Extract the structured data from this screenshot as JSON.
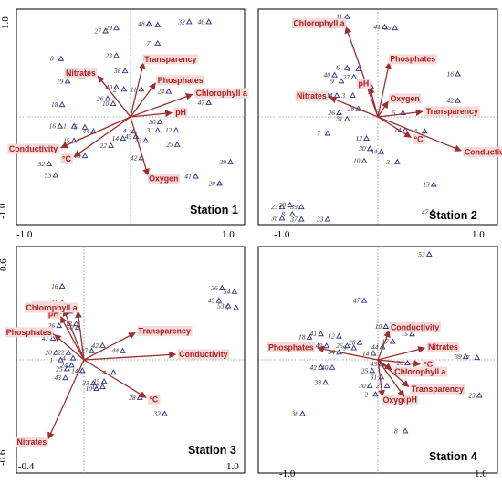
{
  "colors": {
    "vector": "#9c2f2f",
    "vector_label": "#b01e1e",
    "site": "#2b2f8c",
    "site_label": "#333333"
  },
  "icons": {
    "site_marker": "triangle-outline",
    "vector_head": "arrowhead"
  },
  "chart_data": [
    {
      "type": "scatter",
      "title": "Station 1",
      "xlim": [
        -1.0,
        1.0
      ],
      "ylim": [
        -1.0,
        1.0
      ],
      "xticks": [
        "-1.0",
        "1.0"
      ],
      "yticks": [
        "1.0",
        "-1.0"
      ],
      "vectors": [
        {
          "name": "Nitrates",
          "x": -0.3,
          "y": 0.4
        },
        {
          "name": "Transparency",
          "x": 0.12,
          "y": 0.53
        },
        {
          "name": "Phosphates",
          "x": 0.23,
          "y": 0.33
        },
        {
          "name": "Chlorophyll a",
          "x": 0.57,
          "y": 0.22
        },
        {
          "name": "pH",
          "x": 0.38,
          "y": 0.04
        },
        {
          "name": "Conductivity",
          "x": -0.64,
          "y": -0.3
        },
        {
          "name": "°C",
          "x": -0.52,
          "y": -0.39
        },
        {
          "name": "Oxygen",
          "x": 0.16,
          "y": -0.57
        }
      ],
      "sites": [
        {
          "label": "29",
          "x": -0.13,
          "y": 0.87
        },
        {
          "label": "27",
          "x": -0.23,
          "y": 0.84
        },
        {
          "label": "48",
          "x": 0.17,
          "y": 0.91
        },
        {
          "label": "6",
          "x": 0.25,
          "y": 0.9
        },
        {
          "label": "32",
          "x": 0.54,
          "y": 0.93
        },
        {
          "label": "46",
          "x": 0.72,
          "y": 0.93
        },
        {
          "label": "7",
          "x": 0.25,
          "y": 0.72
        },
        {
          "label": "8",
          "x": -0.64,
          "y": 0.57
        },
        {
          "label": "23",
          "x": -0.13,
          "y": 0.6
        },
        {
          "label": "21",
          "x": -0.45,
          "y": 0.4
        },
        {
          "label": "19",
          "x": -0.58,
          "y": 0.35
        },
        {
          "label": "38",
          "x": -0.05,
          "y": 0.45
        },
        {
          "label": "40",
          "x": -0.13,
          "y": 0.29
        },
        {
          "label": "2",
          "x": -0.06,
          "y": 0.27
        },
        {
          "label": "11",
          "x": 0.1,
          "y": 0.27
        },
        {
          "label": "24",
          "x": 0.35,
          "y": 0.25
        },
        {
          "label": "26",
          "x": -0.21,
          "y": 0.18
        },
        {
          "label": "10",
          "x": -0.16,
          "y": 0.13
        },
        {
          "label": "18",
          "x": -0.63,
          "y": 0.12
        },
        {
          "label": "16",
          "x": -0.65,
          "y": -0.09
        },
        {
          "label": "1",
          "x": -0.52,
          "y": -0.09
        },
        {
          "label": "5",
          "x": -0.42,
          "y": -0.1
        },
        {
          "label": "44",
          "x": -0.34,
          "y": -0.14
        },
        {
          "label": "30",
          "x": 0.27,
          "y": -0.05
        },
        {
          "label": "31",
          "x": 0.25,
          "y": -0.13
        },
        {
          "label": "12",
          "x": 0.42,
          "y": -0.13
        },
        {
          "label": "14",
          "x": -0.07,
          "y": -0.21
        },
        {
          "label": "15",
          "x": -0.52,
          "y": -0.23
        },
        {
          "label": "4",
          "x": 0.03,
          "y": -0.14
        },
        {
          "label": "45",
          "x": 0.05,
          "y": -0.19
        },
        {
          "label": "43",
          "x": 0.14,
          "y": -0.23
        },
        {
          "label": "25",
          "x": 0.43,
          "y": -0.27
        },
        {
          "label": "22",
          "x": -0.18,
          "y": -0.28
        },
        {
          "label": "13",
          "x": -0.42,
          "y": -0.38
        },
        {
          "label": "42",
          "x": 0.1,
          "y": -0.4
        },
        {
          "label": "52",
          "x": -0.75,
          "y": -0.46
        },
        {
          "label": "53",
          "x": -0.69,
          "y": -0.57
        },
        {
          "label": "41",
          "x": 0.6,
          "y": -0.58
        },
        {
          "label": "20",
          "x": 0.82,
          "y": -0.65
        },
        {
          "label": "39",
          "x": 0.92,
          "y": -0.44
        },
        {
          "label": "47",
          "x": 0.72,
          "y": 0.14
        }
      ]
    },
    {
      "type": "scatter",
      "title": "Station 2",
      "xlim": [
        -1.0,
        1.0
      ],
      "ylim": [
        -1.0,
        1.0
      ],
      "xticks": [
        "-1.0",
        "1.0"
      ],
      "yticks": [],
      "vectors": [
        {
          "name": "Chlorophyll a",
          "x": -0.28,
          "y": 0.88
        },
        {
          "name": "Phosphates",
          "x": 0.1,
          "y": 0.53
        },
        {
          "name": "Nitrates",
          "x": -0.42,
          "y": 0.19
        },
        {
          "name": "pH",
          "x": -0.07,
          "y": 0.29
        },
        {
          "name": "Oxygen",
          "x": 0.09,
          "y": 0.15
        },
        {
          "name": "Transparency",
          "x": 0.39,
          "y": 0.05
        },
        {
          "name": "°C",
          "x": 0.29,
          "y": -0.2
        },
        {
          "name": "Conductivity",
          "x": 0.73,
          "y": -0.33
        }
      ],
      "sites": [
        {
          "label": "11",
          "x": -0.27,
          "y": 0.98
        },
        {
          "label": "41",
          "x": 0.06,
          "y": 0.88
        },
        {
          "label": "35",
          "x": 0.15,
          "y": 0.87
        },
        {
          "label": "16",
          "x": 0.7,
          "y": 0.42
        },
        {
          "label": "42",
          "x": 0.7,
          "y": 0.16
        },
        {
          "label": "40",
          "x": -0.38,
          "y": 0.41
        },
        {
          "label": "6",
          "x": -0.27,
          "y": 0.48
        },
        {
          "label": "2",
          "x": -0.17,
          "y": 0.47
        },
        {
          "label": "9",
          "x": -0.32,
          "y": 0.35
        },
        {
          "label": "27",
          "x": -0.21,
          "y": 0.39
        },
        {
          "label": "34",
          "x": -0.36,
          "y": 0.21
        },
        {
          "label": "15",
          "x": -0.06,
          "y": 0.3
        },
        {
          "label": "1",
          "x": -0.43,
          "y": 0.21
        },
        {
          "label": "26",
          "x": -0.34,
          "y": 0.04
        },
        {
          "label": "3",
          "x": -0.22,
          "y": 0.21
        },
        {
          "label": "28",
          "x": -0.17,
          "y": 0.08
        },
        {
          "label": "31",
          "x": -0.27,
          "y": -0.02
        },
        {
          "label": "5",
          "x": 0.22,
          "y": 0.04
        },
        {
          "label": "14",
          "x": 0.24,
          "y": -0.13
        },
        {
          "label": "4",
          "x": 0.41,
          "y": -0.14
        },
        {
          "label": "7",
          "x": -0.44,
          "y": -0.16
        },
        {
          "label": "12",
          "x": -0.1,
          "y": -0.21
        },
        {
          "label": "30",
          "x": -0.07,
          "y": -0.31
        },
        {
          "label": "44",
          "x": 0.03,
          "y": -0.34
        },
        {
          "label": "10",
          "x": -0.12,
          "y": -0.43
        },
        {
          "label": "3b",
          "x": 0.17,
          "y": -0.44
        },
        {
          "label": "13",
          "x": 0.49,
          "y": -0.66
        },
        {
          "label": "47",
          "x": 0.48,
          "y": -0.93
        },
        {
          "label": "23",
          "x": -0.84,
          "y": -0.88
        },
        {
          "label": "29",
          "x": -0.77,
          "y": -0.86
        },
        {
          "label": "39",
          "x": -0.67,
          "y": -0.88
        },
        {
          "label": "38",
          "x": -0.84,
          "y": -0.99
        },
        {
          "label": "8",
          "x": -0.75,
          "y": -0.95
        },
        {
          "label": "37",
          "x": -0.67,
          "y": -1.0
        },
        {
          "label": "33",
          "x": -0.44,
          "y": -1.0
        }
      ]
    },
    {
      "type": "scatter",
      "title": "Station 3",
      "xlim": [
        -0.4,
        1.0
      ],
      "ylim": [
        -0.6,
        0.6
      ],
      "xticks": [
        "-0.4",
        "1.0"
      ],
      "yticks": [
        "0.6",
        "-0.6"
      ],
      "vectors": [
        {
          "name": "Oxygen",
          "x": -0.13,
          "y": 0.28
        },
        {
          "name": "pH",
          "x": -0.15,
          "y": 0.24
        },
        {
          "name": "Chlorophyll a",
          "x": -0.04,
          "y": 0.27
        },
        {
          "name": "Phosphates",
          "x": -0.19,
          "y": 0.14
        },
        {
          "name": "Transparency",
          "x": 0.33,
          "y": 0.15
        },
        {
          "name": "Conductivity",
          "x": 0.59,
          "y": 0.03
        },
        {
          "name": "°C",
          "x": 0.4,
          "y": -0.21
        },
        {
          "name": "Nitrates",
          "x": -0.23,
          "y": -0.44
        }
      ],
      "sites": [
        {
          "label": "16",
          "x": -0.14,
          "y": 0.41
        },
        {
          "label": "11",
          "x": -0.14,
          "y": 0.32
        },
        {
          "label": "39",
          "x": -0.17,
          "y": 0.28
        },
        {
          "label": "21",
          "x": -0.09,
          "y": 0.27
        },
        {
          "label": "13",
          "x": -0.05,
          "y": 0.2
        },
        {
          "label": "26",
          "x": -0.16,
          "y": 0.19
        },
        {
          "label": "50",
          "x": -0.04,
          "y": 0.18
        },
        {
          "label": "49",
          "x": -0.21,
          "y": 0.15
        },
        {
          "label": "47",
          "x": -0.2,
          "y": 0.12
        },
        {
          "label": "20",
          "x": -0.18,
          "y": 0.04
        },
        {
          "label": "22",
          "x": -0.1,
          "y": 0.04
        },
        {
          "label": "1",
          "x": -0.15,
          "y": 0.0
        },
        {
          "label": "4",
          "x": -0.07,
          "y": 0.01
        },
        {
          "label": "24",
          "x": -0.08,
          "y": -0.03
        },
        {
          "label": "25",
          "x": -0.11,
          "y": -0.05
        },
        {
          "label": "43",
          "x": -0.12,
          "y": -0.1
        },
        {
          "label": "14",
          "x": -0.01,
          "y": -0.06
        },
        {
          "label": "42",
          "x": 0.12,
          "y": 0.08
        },
        {
          "label": "27",
          "x": 0.05,
          "y": 0.05
        },
        {
          "label": "44",
          "x": 0.25,
          "y": 0.05
        },
        {
          "label": "4b",
          "x": 0.19,
          "y": -0.07
        },
        {
          "label": "33",
          "x": 0.06,
          "y": -0.13
        },
        {
          "label": "15",
          "x": 0.13,
          "y": -0.12
        },
        {
          "label": "17",
          "x": 0.12,
          "y": -0.15
        },
        {
          "label": "10",
          "x": 0.08,
          "y": -0.16
        },
        {
          "label": "28",
          "x": 0.36,
          "y": -0.21
        },
        {
          "label": "32",
          "x": 0.52,
          "y": -0.3
        },
        {
          "label": "36",
          "x": 0.89,
          "y": 0.4
        },
        {
          "label": "54",
          "x": 0.97,
          "y": 0.38
        },
        {
          "label": "45",
          "x": 0.87,
          "y": 0.33
        },
        {
          "label": "53",
          "x": 0.93,
          "y": 0.3
        },
        {
          "label": "5",
          "x": 0.98,
          "y": 0.29
        }
      ]
    },
    {
      "type": "scatter",
      "title": "Station 4",
      "xlim": [
        -1.0,
        1.0
      ],
      "ylim": [
        -1.0,
        1.0
      ],
      "xticks": [
        "-1.0",
        "1.0"
      ],
      "yticks": [],
      "vectors": [
        {
          "name": "Conductivity",
          "x": 0.1,
          "y": 0.27
        },
        {
          "name": "Phosphates",
          "x": -0.53,
          "y": 0.11
        },
        {
          "name": "Nitrates",
          "x": 0.41,
          "y": 0.11
        },
        {
          "name": "°C",
          "x": 0.37,
          "y": -0.04
        },
        {
          "name": "Chlorophyll a",
          "x": 0.12,
          "y": -0.09
        },
        {
          "name": "Transparency",
          "x": 0.27,
          "y": -0.25
        },
        {
          "name": "Oxygen",
          "x": 0.04,
          "y": -0.34
        },
        {
          "name": "pH",
          "x": 0.23,
          "y": -0.34
        }
      ],
      "sites": [
        {
          "label": "53",
          "x": 0.45,
          "y": 0.98
        },
        {
          "label": "47",
          "x": -0.12,
          "y": 0.55
        },
        {
          "label": "10",
          "x": 0.07,
          "y": 0.31
        },
        {
          "label": "15",
          "x": 0.3,
          "y": 0.24
        },
        {
          "label": "17",
          "x": 0.13,
          "y": 0.17
        },
        {
          "label": "18",
          "x": -0.6,
          "y": 0.21
        },
        {
          "label": "41",
          "x": -0.5,
          "y": 0.24
        },
        {
          "label": "12",
          "x": -0.34,
          "y": 0.22
        },
        {
          "label": "48",
          "x": -0.45,
          "y": 0.13
        },
        {
          "label": "26",
          "x": -0.27,
          "y": 0.13
        },
        {
          "label": "28",
          "x": -0.16,
          "y": 0.16
        },
        {
          "label": "34",
          "x": -0.34,
          "y": 0.07
        },
        {
          "label": "9",
          "x": -0.21,
          "y": 0.11
        },
        {
          "label": "44",
          "x": 0.04,
          "y": 0.12
        },
        {
          "label": "14",
          "x": -0.04,
          "y": 0.06
        },
        {
          "label": "40",
          "x": -0.4,
          "y": -0.07
        },
        {
          "label": "42",
          "x": -0.5,
          "y": -0.07
        },
        {
          "label": "45",
          "x": 0.03,
          "y": -0.04
        },
        {
          "label": "20",
          "x": 0.26,
          "y": -0.03
        },
        {
          "label": "11",
          "x": 0.52,
          "y": -0.09
        },
        {
          "label": "25",
          "x": -0.05,
          "y": -0.1
        },
        {
          "label": "31",
          "x": 0.03,
          "y": -0.16
        },
        {
          "label": "38",
          "x": -0.46,
          "y": -0.21
        },
        {
          "label": "30",
          "x": -0.07,
          "y": -0.24
        },
        {
          "label": "21",
          "x": 0.08,
          "y": -0.24
        },
        {
          "label": "2",
          "x": -0.02,
          "y": -0.32
        },
        {
          "label": "39",
          "x": 0.77,
          "y": 0.03
        },
        {
          "label": "7",
          "x": 0.87,
          "y": 0.02
        },
        {
          "label": "23",
          "x": 0.89,
          "y": -0.33
        },
        {
          "label": "36",
          "x": -0.66,
          "y": -0.5
        },
        {
          "label": "8",
          "x": 0.24,
          "y": -0.66
        }
      ]
    }
  ]
}
